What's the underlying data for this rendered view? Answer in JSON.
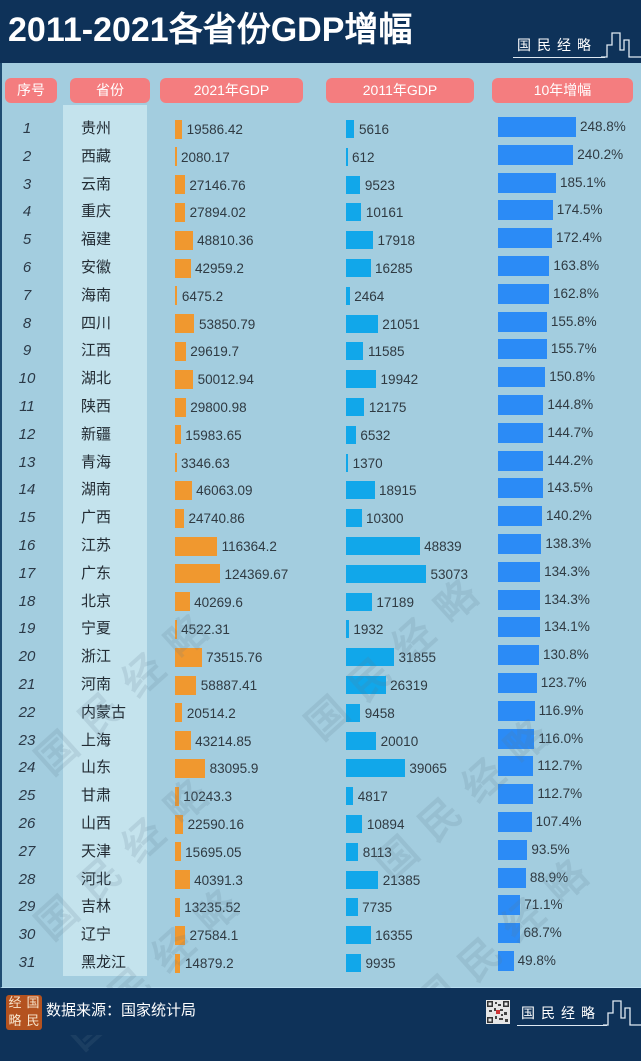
{
  "header": {
    "title": "2011-2021各省份GDP增幅",
    "logo_text": "国民经略"
  },
  "table": {
    "headers": {
      "rank": "序号",
      "province": "省份",
      "gdp2021": "2021年GDP",
      "gdp2011": "2011年GDP",
      "growth": "10年增幅"
    },
    "rows": [
      {
        "rank": "1",
        "province": "贵州",
        "gdp2021": "19586.42",
        "gdp2011": "5616",
        "growth": "248.8%"
      },
      {
        "rank": "2",
        "province": "西藏",
        "gdp2021": "2080.17",
        "gdp2011": "612",
        "growth": "240.2%"
      },
      {
        "rank": "3",
        "province": "云南",
        "gdp2021": "27146.76",
        "gdp2011": "9523",
        "growth": "185.1%"
      },
      {
        "rank": "4",
        "province": "重庆",
        "gdp2021": "27894.02",
        "gdp2011": "10161",
        "growth": "174.5%"
      },
      {
        "rank": "5",
        "province": "福建",
        "gdp2021": "48810.36",
        "gdp2011": "17918",
        "growth": "172.4%"
      },
      {
        "rank": "6",
        "province": "安徽",
        "gdp2021": "42959.2",
        "gdp2011": "16285",
        "growth": "163.8%"
      },
      {
        "rank": "7",
        "province": "海南",
        "gdp2021": "6475.2",
        "gdp2011": "2464",
        "growth": "162.8%"
      },
      {
        "rank": "8",
        "province": "四川",
        "gdp2021": "53850.79",
        "gdp2011": "21051",
        "growth": "155.8%"
      },
      {
        "rank": "9",
        "province": "江西",
        "gdp2021": "29619.7",
        "gdp2011": "11585",
        "growth": "155.7%"
      },
      {
        "rank": "10",
        "province": "湖北",
        "gdp2021": "50012.94",
        "gdp2011": "19942",
        "growth": "150.8%"
      },
      {
        "rank": "11",
        "province": "陕西",
        "gdp2021": "29800.98",
        "gdp2011": "12175",
        "growth": "144.8%"
      },
      {
        "rank": "12",
        "province": "新疆",
        "gdp2021": "15983.65",
        "gdp2011": "6532",
        "growth": "144.7%"
      },
      {
        "rank": "13",
        "province": "青海",
        "gdp2021": "3346.63",
        "gdp2011": "1370",
        "growth": "144.2%"
      },
      {
        "rank": "14",
        "province": "湖南",
        "gdp2021": "46063.09",
        "gdp2011": "18915",
        "growth": "143.5%"
      },
      {
        "rank": "15",
        "province": "广西",
        "gdp2021": "24740.86",
        "gdp2011": "10300",
        "growth": "140.2%"
      },
      {
        "rank": "16",
        "province": "江苏",
        "gdp2021": "116364.2",
        "gdp2011": "48839",
        "growth": "138.3%"
      },
      {
        "rank": "17",
        "province": "广东",
        "gdp2021": "124369.67",
        "gdp2011": "53073",
        "growth": "134.3%"
      },
      {
        "rank": "18",
        "province": "北京",
        "gdp2021": "40269.6",
        "gdp2011": "17189",
        "growth": "134.3%"
      },
      {
        "rank": "19",
        "province": "宁夏",
        "gdp2021": "4522.31",
        "gdp2011": "1932",
        "growth": "134.1%"
      },
      {
        "rank": "20",
        "province": "浙江",
        "gdp2021": "73515.76",
        "gdp2011": "31855",
        "growth": "130.8%"
      },
      {
        "rank": "21",
        "province": "河南",
        "gdp2021": "58887.41",
        "gdp2011": "26319",
        "growth": "123.7%"
      },
      {
        "rank": "22",
        "province": "内蒙古",
        "gdp2021": "20514.2",
        "gdp2011": "9458",
        "growth": "116.9%"
      },
      {
        "rank": "23",
        "province": "上海",
        "gdp2021": "43214.85",
        "gdp2011": "20010",
        "growth": "116.0%"
      },
      {
        "rank": "24",
        "province": "山东",
        "gdp2021": "83095.9",
        "gdp2011": "39065",
        "growth": "112.7%"
      },
      {
        "rank": "25",
        "province": "甘肃",
        "gdp2021": "10243.3",
        "gdp2011": "4817",
        "growth": "112.7%"
      },
      {
        "rank": "26",
        "province": "山西",
        "gdp2021": "22590.16",
        "gdp2011": "10894",
        "growth": "107.4%"
      },
      {
        "rank": "27",
        "province": "天津",
        "gdp2021": "15695.05",
        "gdp2011": "8113",
        "growth": "93.5%"
      },
      {
        "rank": "28",
        "province": "河北",
        "gdp2021": "40391.3",
        "gdp2011": "21385",
        "growth": "88.9%"
      },
      {
        "rank": "29",
        "province": "吉林",
        "gdp2021": "13235.52",
        "gdp2011": "7735",
        "growth": "71.1%"
      },
      {
        "rank": "30",
        "province": "辽宁",
        "gdp2021": "27584.1",
        "gdp2011": "16355",
        "growth": "68.7%"
      },
      {
        "rank": "31",
        "province": "黑龙江",
        "gdp2021": "14879.2",
        "gdp2011": "9935",
        "growth": "49.8%"
      }
    ]
  },
  "footer": {
    "seal_chars": [
      "经",
      "国",
      "略",
      "民"
    ],
    "source": "数据来源：国家统计局",
    "logo_text": "国民经略"
  },
  "watermark": {
    "text": "国民经略"
  },
  "colors": {
    "header_bg": "#0e3259",
    "panel_bg": "#a3cddf",
    "province_column_bg": "#c4e3ed",
    "pill_bg": "#f47d7f",
    "gdp2021_bar": "#f0982f",
    "gdp2011_bar": "#11a7ea",
    "growth_bar": "#2b8bf6",
    "seal_bg": "#b4521f"
  },
  "chart_data": {
    "type": "bar",
    "title": "2011-2021各省份GDP增幅",
    "xlabel": "",
    "ylabel": "",
    "legend": "none (column headers act as labels)",
    "grid": false,
    "categories": [
      "贵州",
      "西藏",
      "云南",
      "重庆",
      "福建",
      "安徽",
      "海南",
      "四川",
      "江西",
      "湖北",
      "陕西",
      "新疆",
      "青海",
      "湖南",
      "广西",
      "江苏",
      "广东",
      "北京",
      "宁夏",
      "浙江",
      "河南",
      "内蒙古",
      "上海",
      "山东",
      "甘肃",
      "山西",
      "天津",
      "河北",
      "吉林",
      "辽宁",
      "黑龙江"
    ],
    "series": [
      {
        "name": "2021年GDP",
        "values": [
          19586.42,
          2080.17,
          27146.76,
          27894.02,
          48810.36,
          42959.2,
          6475.2,
          53850.79,
          29619.7,
          50012.94,
          29800.98,
          15983.65,
          3346.63,
          46063.09,
          24740.86,
          116364.2,
          124369.67,
          40269.6,
          4522.31,
          73515.76,
          58887.41,
          20514.2,
          43214.85,
          83095.9,
          10243.3,
          22590.16,
          15695.05,
          40391.3,
          13235.52,
          27584.1,
          14879.2
        ]
      },
      {
        "name": "2011年GDP",
        "values": [
          5616,
          612,
          9523,
          10161,
          17918,
          16285,
          2464,
          21051,
          11585,
          19942,
          12175,
          6532,
          1370,
          18915,
          10300,
          48839,
          53073,
          17189,
          1932,
          31855,
          26319,
          9458,
          20010,
          39065,
          4817,
          10894,
          8113,
          21385,
          7735,
          16355,
          9935
        ]
      },
      {
        "name": "10年增幅",
        "unit": "%",
        "values": [
          248.8,
          240.2,
          185.1,
          174.5,
          172.4,
          163.8,
          162.8,
          155.8,
          155.7,
          150.8,
          144.8,
          144.7,
          144.2,
          143.5,
          140.2,
          138.3,
          134.3,
          134.3,
          134.1,
          130.8,
          123.7,
          116.9,
          116.0,
          112.7,
          112.7,
          107.4,
          93.5,
          88.9,
          71.1,
          68.7,
          49.8
        ]
      }
    ],
    "annotations": [
      "数据来源：国家统计局"
    ]
  }
}
